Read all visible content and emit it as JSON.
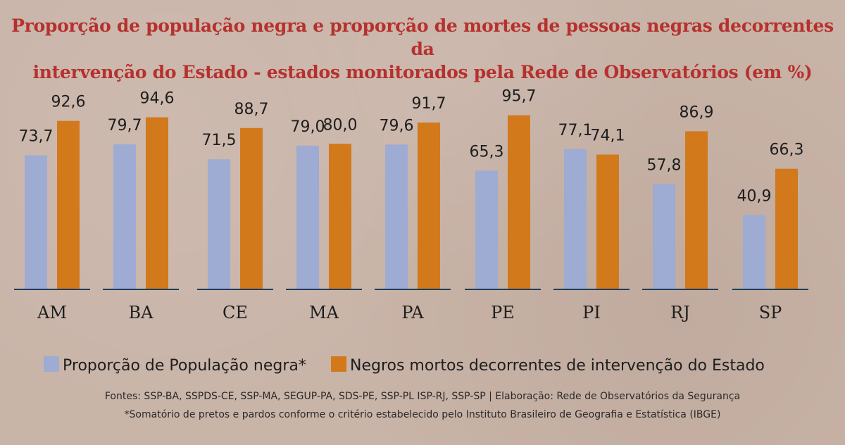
{
  "title_line1": "Proporção de população negra e proporção de mortes de pessoas negras decorrentes da",
  "title_line2": "intervenção do Estado - estados monitorados pela Rede de Observatórios (em %)",
  "footer_sources": "Fontes: SSP-BA, SSPDS-CE, SSP-MA, SEGUP-PA, SDS-PE, SSP-PL ISP-RJ, SSP-SP | Elaboração: Rede de Observatórios da Segurança",
  "footer_note": "*Somatório de pretos e pardos conforme o critério estabelecido pelo Instituto Brasileiro de Geografia e Estatística (IBGE)",
  "colors": {
    "series1": "#9eabd3",
    "series2": "#d2791c",
    "baseline": "#1d3d5a",
    "title": "#b6312e"
  },
  "chart_data": {
    "type": "bar",
    "categories": [
      "AM",
      "BA",
      "CE",
      "MA",
      "PA",
      "PE",
      "PI",
      "RJ",
      "SP"
    ],
    "series": [
      {
        "name": "Proporção de População negra*",
        "values": [
          73.7,
          79.7,
          71.5,
          79.0,
          79.6,
          65.3,
          77.1,
          57.8,
          40.9
        ],
        "labels": [
          "73,7",
          "79,7",
          "71,5",
          "79,0",
          "79,6",
          "65,3",
          "77,1",
          "57,8",
          "40,9"
        ]
      },
      {
        "name": "Negros mortos decorrentes de intervenção do Estado",
        "values": [
          92.6,
          94.6,
          88.7,
          80.0,
          91.7,
          95.7,
          74.1,
          86.9,
          66.3
        ],
        "labels": [
          "92,6",
          "94,6",
          "88,7",
          "80,0",
          "91,7",
          "95,7",
          "74,1",
          "86,9",
          "66,3"
        ]
      }
    ],
    "ylim": [
      0,
      100
    ],
    "legend_position": "bottom",
    "grid": false
  }
}
